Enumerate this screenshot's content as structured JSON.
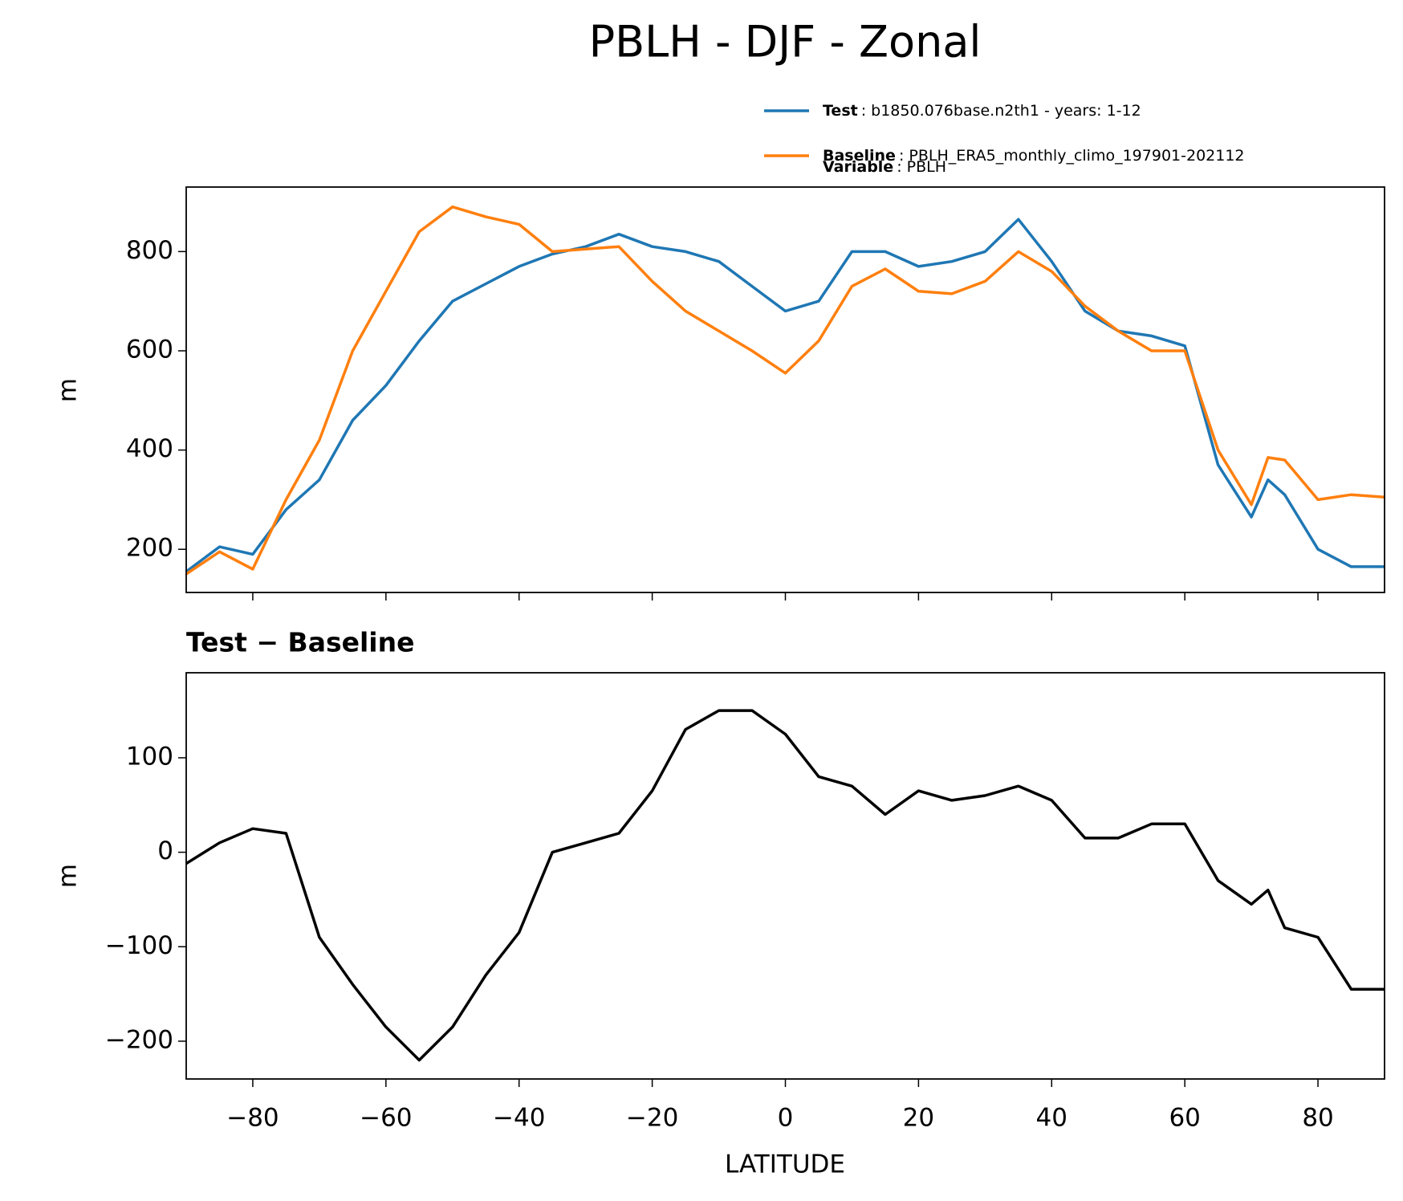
{
  "chart_data": [
    {
      "type": "line",
      "title": "PBLH - DJF - Zonal",
      "ylabel": "m",
      "x": [
        -90,
        -85,
        -80,
        -75,
        -70,
        -65,
        -60,
        -55,
        -50,
        -45,
        -40,
        -35,
        -30,
        -25,
        -20,
        -15,
        -10,
        -5,
        0,
        5,
        10,
        15,
        20,
        25,
        30,
        35,
        40,
        45,
        50,
        55,
        60,
        65,
        70,
        72.5,
        75,
        80,
        85,
        90
      ],
      "series": [
        {
          "name": "Test",
          "description": ": b1850.076base.n2th1 - years: 1-12",
          "color": "#1f77b4",
          "values": [
            155,
            205,
            190,
            280,
            340,
            460,
            530,
            620,
            700,
            735,
            770,
            795,
            810,
            835,
            810,
            800,
            780,
            730,
            680,
            700,
            800,
            800,
            770,
            780,
            800,
            865,
            780,
            680,
            640,
            630,
            610,
            370,
            265,
            340,
            310,
            200,
            165,
            165
          ]
        },
        {
          "name": "Baseline",
          "description": ": PBLH_ERA5_monthly_climo_197901-202112",
          "color": "#ff7f0e",
          "values": [
            150,
            195,
            160,
            300,
            420,
            600,
            720,
            840,
            890,
            870,
            855,
            800,
            805,
            810,
            740,
            680,
            640,
            600,
            555,
            620,
            730,
            765,
            720,
            715,
            740,
            800,
            760,
            690,
            640,
            600,
            600,
            400,
            290,
            385,
            380,
            300,
            310,
            305
          ]
        }
      ],
      "legend_note": {
        "name": "Variable",
        "description": ": PBLH"
      },
      "xlim": [
        -90,
        90
      ],
      "xticks": [
        -80,
        -60,
        -40,
        -20,
        0,
        20,
        40,
        60,
        80
      ],
      "ylim": [
        113,
        930
      ],
      "yticks": [
        200,
        400,
        600,
        800
      ]
    },
    {
      "type": "line",
      "title": "Test − Baseline",
      "ylabel": "m",
      "xlabel": "LATITUDE",
      "x": [
        -90,
        -85,
        -80,
        -75,
        -70,
        -65,
        -60,
        -55,
        -50,
        -45,
        -40,
        -35,
        -30,
        -25,
        -20,
        -15,
        -10,
        -5,
        0,
        5,
        10,
        15,
        20,
        25,
        30,
        35,
        40,
        45,
        50,
        55,
        60,
        65,
        70,
        72.5,
        75,
        80,
        85,
        90
      ],
      "series": [
        {
          "color": "#000000",
          "values": [
            -12,
            10,
            25,
            20,
            -90,
            -140,
            -185,
            -220,
            -185,
            -130,
            -85,
            0,
            10,
            20,
            65,
            130,
            150,
            150,
            125,
            80,
            70,
            40,
            65,
            55,
            60,
            70,
            55,
            15,
            15,
            30,
            30,
            -30,
            -55,
            -40,
            -80,
            -90,
            -145,
            -145
          ]
        }
      ],
      "xlim": [
        -90,
        90
      ],
      "xticks": [
        {
          "value": -80,
          "label": "−80"
        },
        {
          "value": -60,
          "label": "−60"
        },
        {
          "value": -40,
          "label": "−40"
        },
        {
          "value": -20,
          "label": "−20"
        },
        0,
        20,
        40,
        60,
        80
      ],
      "ylim": [
        -240,
        190
      ],
      "yticks": [
        {
          "value": -200,
          "label": "−200"
        },
        {
          "value": -100,
          "label": "−100"
        },
        0,
        100
      ]
    }
  ]
}
